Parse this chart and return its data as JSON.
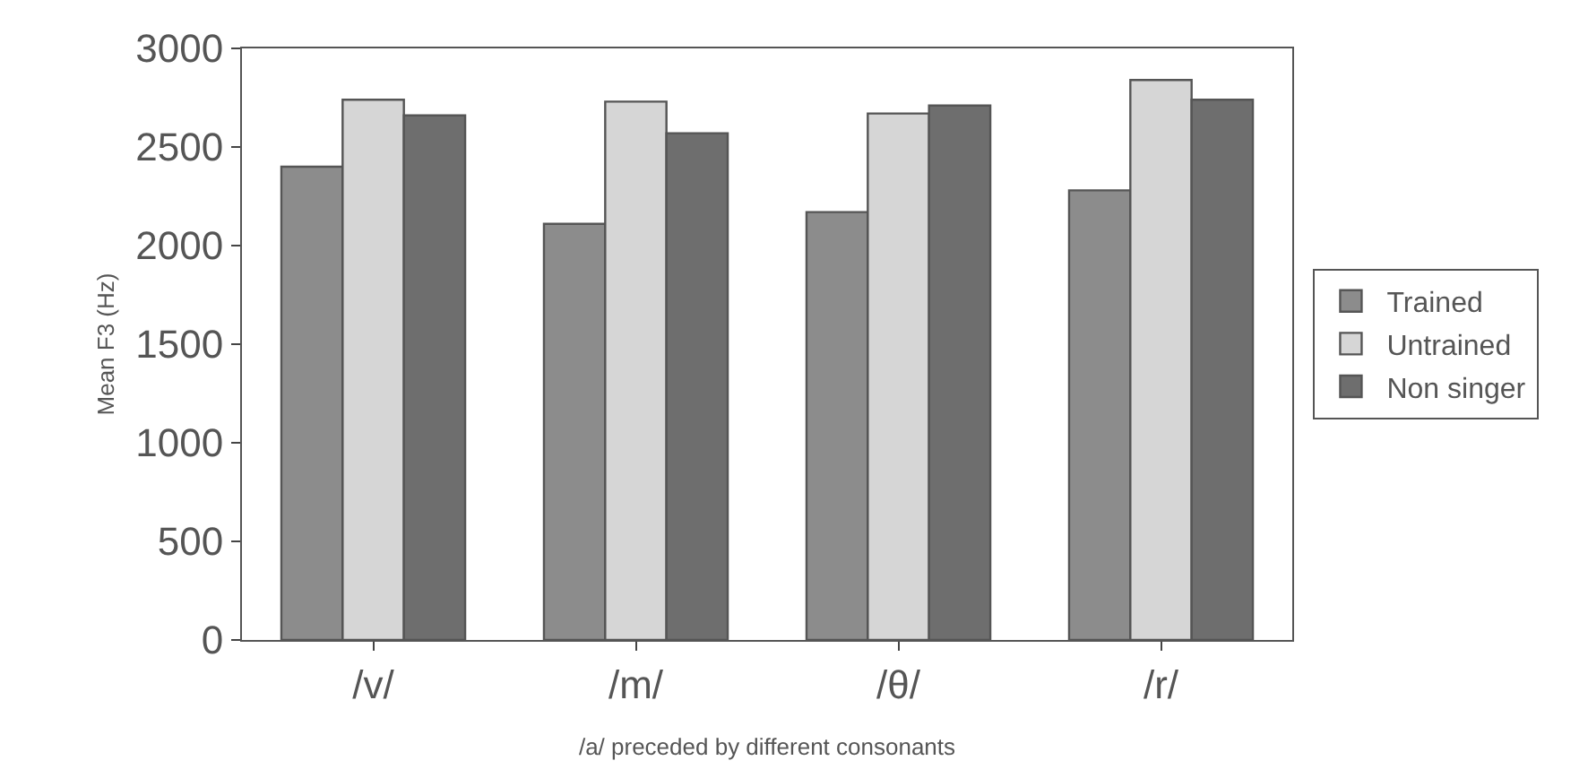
{
  "chart_data": {
    "type": "bar",
    "xlabel": "/a/ preceded by different consonants",
    "ylabel": "Mean F3 (Hz)",
    "categories": [
      "/v/",
      "/m/",
      "/θ/",
      "/r/"
    ],
    "series": [
      {
        "name": "Trained",
        "color": "#8c8c8c",
        "values": [
          2400,
          2110,
          2170,
          2280
        ]
      },
      {
        "name": "Untrained",
        "color": "#d6d6d6",
        "values": [
          2740,
          2730,
          2670,
          2840
        ]
      },
      {
        "name": "Non singer",
        "color": "#6e6e6e",
        "values": [
          2660,
          2570,
          2710,
          2740
        ]
      }
    ],
    "ylim": [
      0,
      3000
    ],
    "yticks": [
      0,
      500,
      1000,
      1500,
      2000,
      2500,
      3000
    ],
    "legend": "right"
  }
}
